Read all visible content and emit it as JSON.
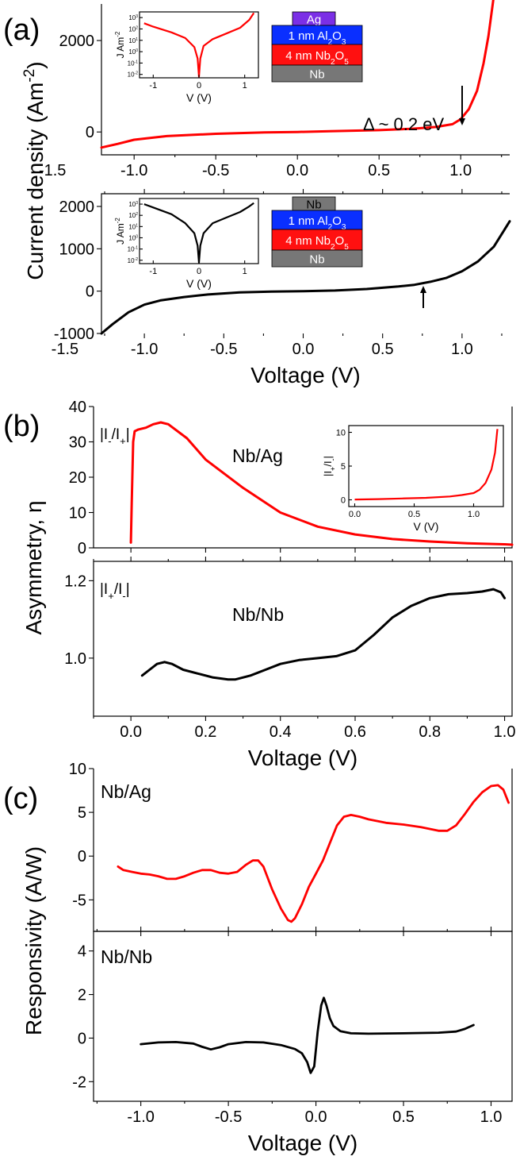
{
  "figure": {
    "labels": {
      "a": "(a)",
      "b": "(b)",
      "c": "(c)"
    },
    "ylabels": {
      "a": "Current density (Am^-2)",
      "b": "Asymmetry, η",
      "c": "Responsivity (A/W)"
    }
  },
  "chart_data": [
    {
      "id": "a_top",
      "type": "line",
      "xlabel": "",
      "ylabel": "",
      "xlim": [
        -1.2,
        1.3
      ],
      "ylim": [
        -500,
        2800
      ],
      "xticks": [
        -1.5,
        -1.0,
        -0.5,
        0.0,
        0.5,
        1.0
      ],
      "xtick_labels": [
        "-1.5",
        "-1.0",
        "-0.5",
        "0.0",
        "0.5",
        "1.0"
      ],
      "yticks": [
        0,
        2000
      ],
      "ytick_labels": [
        "0",
        "2000"
      ],
      "series": [
        {
          "color": "#ff0000",
          "x": [
            -1.2,
            -1.1,
            -1.0,
            -0.8,
            -0.5,
            -0.2,
            0.0,
            0.2,
            0.5,
            0.7,
            0.85,
            0.95,
            1.0,
            1.05,
            1.1,
            1.14,
            1.17,
            1.2
          ],
          "y": [
            -340,
            -260,
            -170,
            -90,
            -40,
            -10,
            0,
            15,
            40,
            70,
            110,
            170,
            280,
            500,
            900,
            1500,
            2100,
            2900
          ]
        }
      ],
      "annotations": [
        {
          "text": "Δ ~ 0.2 eV"
        }
      ],
      "stack": [
        "Ag",
        "1 nm Al2O3",
        "4 nm Nb2O5",
        "Nb"
      ],
      "inset": {
        "xlabel": "V (V)",
        "ylabel": "J Am^-2",
        "xlim": [
          -1.3,
          1.3
        ],
        "ylim_log10": [
          -2.3,
          3.5
        ],
        "xtick_labels": [
          "-1",
          "0",
          "1"
        ],
        "ytick_labels": [
          "10^3",
          "10^2",
          "10^1",
          "10^0",
          "10^-1",
          "10^-2"
        ],
        "x": [
          -1.2,
          -1.0,
          -0.6,
          -0.3,
          -0.1,
          -0.03,
          0.0,
          0.03,
          0.1,
          0.3,
          0.6,
          0.9,
          1.1,
          1.2
        ],
        "log10_y": [
          2.5,
          2.2,
          1.7,
          1.2,
          0.4,
          -0.6,
          -2.2,
          -0.6,
          0.5,
          1.1,
          1.6,
          2.1,
          2.8,
          3.4
        ]
      }
    },
    {
      "id": "a_bottom",
      "type": "line",
      "xlabel": "Voltage (V)",
      "ylabel": "",
      "xlim": [
        -1.27,
        1.3
      ],
      "ylim": [
        -1000,
        2300
      ],
      "xticks": [
        -1.5,
        -1.0,
        -0.5,
        0.0,
        0.5,
        1.0
      ],
      "xtick_labels": [
        "-1.5",
        "-1.0",
        "-0.5",
        "0.0",
        "0.5",
        "1.0"
      ],
      "yticks": [
        -1000,
        0,
        1000,
        2000
      ],
      "ytick_labels": [
        "-1000",
        "0",
        "1000",
        "2000"
      ],
      "series": [
        {
          "color": "#000000",
          "x": [
            -1.27,
            -1.2,
            -1.1,
            -1.0,
            -0.9,
            -0.75,
            -0.6,
            -0.4,
            -0.2,
            0.0,
            0.2,
            0.4,
            0.6,
            0.7,
            0.8,
            0.9,
            1.0,
            1.1,
            1.2,
            1.3
          ],
          "y": [
            -1000,
            -780,
            -500,
            -320,
            -220,
            -140,
            -80,
            -30,
            -10,
            0,
            15,
            50,
            110,
            150,
            220,
            310,
            470,
            700,
            1050,
            1650
          ]
        }
      ],
      "stack": [
        "Nb",
        "1 nm Al2O3",
        "4 nm Nb2O5",
        "Nb"
      ],
      "inset": {
        "xlabel": "V (V)",
        "ylabel": "J Am^-2",
        "xlim": [
          -1.3,
          1.3
        ],
        "ylim_log10": [
          -2.3,
          3.5
        ],
        "xtick_labels": [
          "-1",
          "0",
          "1"
        ],
        "ytick_labels": [
          "10^3",
          "10^2",
          "10^1",
          "10^0",
          "10^-1",
          "10^-2"
        ],
        "x": [
          -1.2,
          -1.0,
          -0.6,
          -0.3,
          -0.1,
          -0.03,
          0.0,
          0.03,
          0.1,
          0.3,
          0.6,
          0.9,
          1.1,
          1.2
        ],
        "log10_y": [
          3.0,
          2.7,
          2.1,
          1.3,
          0.4,
          -0.7,
          -2.2,
          -0.7,
          0.4,
          1.3,
          1.8,
          2.3,
          2.8,
          3.1
        ]
      }
    },
    {
      "id": "b_top",
      "type": "line",
      "xlabel": "",
      "ylabel": "",
      "xlim": [
        -0.1,
        1.02
      ],
      "ylim": [
        0,
        40
      ],
      "yticks": [
        0,
        10,
        20,
        30,
        40
      ],
      "ytick_labels": [
        "0",
        "10",
        "20",
        "30",
        "40"
      ],
      "series": [
        {
          "name": "Nb/Ag",
          "color": "#ff0000",
          "x": [
            0.0,
            0.002,
            0.006,
            0.01,
            0.02,
            0.04,
            0.06,
            0.08,
            0.1,
            0.15,
            0.2,
            0.3,
            0.4,
            0.5,
            0.6,
            0.7,
            0.8,
            0.9,
            1.0,
            1.02
          ],
          "y": [
            1.5,
            12,
            30,
            33,
            33.5,
            34,
            35,
            35.5,
            35,
            31,
            25,
            17,
            10,
            6,
            3.8,
            2.5,
            1.8,
            1.3,
            1.0,
            0.9
          ]
        }
      ],
      "annotations": [
        {
          "text": "|I-/I+|"
        },
        {
          "text": "Nb/Ag"
        }
      ],
      "inset": {
        "xlabel": "V (V)",
        "ylabel": "|I+/I-|",
        "xlim": [
          -0.05,
          1.25
        ],
        "ylim": [
          -1,
          11
        ],
        "xtick_labels": [
          "0.0",
          "0.5",
          "1.0"
        ],
        "ytick_labels": [
          "0",
          "5",
          "10"
        ],
        "x": [
          0.0,
          0.2,
          0.4,
          0.6,
          0.8,
          0.9,
          1.0,
          1.05,
          1.1,
          1.15,
          1.18,
          1.2
        ],
        "y": [
          0.05,
          0.1,
          0.2,
          0.3,
          0.5,
          0.7,
          1.0,
          1.5,
          2.5,
          4.5,
          7,
          10.5
        ]
      }
    },
    {
      "id": "b_bottom",
      "type": "line",
      "xlabel": "Voltage (V)",
      "ylabel": "",
      "xlim": [
        -0.1,
        1.02
      ],
      "ylim": [
        0.85,
        1.25
      ],
      "xticks": [
        0.0,
        0.2,
        0.4,
        0.6,
        0.8,
        1.0
      ],
      "xtick_labels": [
        "0.0",
        "0.2",
        "0.4",
        "0.6",
        "0.8",
        "1.0"
      ],
      "yticks": [
        1.0,
        1.2
      ],
      "ytick_labels": [
        "1.0",
        "1.2"
      ],
      "series": [
        {
          "name": "Nb/Nb",
          "color": "#000000",
          "x": [
            0.03,
            0.05,
            0.07,
            0.09,
            0.11,
            0.14,
            0.18,
            0.22,
            0.26,
            0.28,
            0.32,
            0.36,
            0.4,
            0.45,
            0.5,
            0.55,
            0.6,
            0.65,
            0.7,
            0.75,
            0.8,
            0.85,
            0.9,
            0.94,
            0.97,
            0.99,
            1.0
          ],
          "y": [
            0.955,
            0.97,
            0.985,
            0.99,
            0.985,
            0.97,
            0.96,
            0.95,
            0.945,
            0.945,
            0.955,
            0.97,
            0.985,
            0.995,
            1.0,
            1.005,
            1.02,
            1.06,
            1.105,
            1.135,
            1.155,
            1.165,
            1.168,
            1.172,
            1.178,
            1.17,
            1.155
          ]
        }
      ],
      "annotations": [
        {
          "text": "|I+/I-|"
        },
        {
          "text": "Nb/Nb"
        }
      ]
    },
    {
      "id": "c_top",
      "type": "line",
      "xlabel": "",
      "ylabel": "",
      "xlim": [
        -1.27,
        1.12
      ],
      "ylim": [
        -8.6,
        10
      ],
      "yticks": [
        -5,
        0,
        5,
        10
      ],
      "ytick_labels": [
        "-5",
        "0",
        "5",
        "10"
      ],
      "series": [
        {
          "name": "Nb/Ag",
          "color": "#ff0000",
          "x": [
            -1.13,
            -1.1,
            -1.05,
            -1.0,
            -0.95,
            -0.9,
            -0.85,
            -0.8,
            -0.75,
            -0.7,
            -0.65,
            -0.6,
            -0.55,
            -0.5,
            -0.45,
            -0.4,
            -0.36,
            -0.33,
            -0.3,
            -0.25,
            -0.2,
            -0.16,
            -0.14,
            -0.12,
            -0.08,
            -0.04,
            0.0,
            0.04,
            0.08,
            0.12,
            0.16,
            0.2,
            0.25,
            0.3,
            0.4,
            0.5,
            0.6,
            0.7,
            0.75,
            0.8,
            0.85,
            0.9,
            0.95,
            1.0,
            1.04,
            1.07,
            1.09,
            1.1
          ],
          "y": [
            -1.2,
            -1.6,
            -1.8,
            -2.0,
            -2.1,
            -2.3,
            -2.6,
            -2.6,
            -2.3,
            -1.9,
            -1.6,
            -1.6,
            -1.9,
            -2.0,
            -1.8,
            -1.0,
            -0.5,
            -0.5,
            -1.2,
            -3.8,
            -6.0,
            -7.3,
            -7.5,
            -7.1,
            -5.5,
            -3.5,
            -2.0,
            -0.5,
            1.5,
            3.5,
            4.5,
            4.7,
            4.5,
            4.2,
            3.8,
            3.6,
            3.3,
            2.9,
            2.9,
            3.5,
            4.8,
            6.2,
            7.3,
            8.0,
            8.1,
            7.6,
            6.6,
            6.1
          ]
        }
      ],
      "annotations": [
        {
          "text": "Nb/Ag"
        }
      ]
    },
    {
      "id": "c_bottom",
      "type": "line",
      "xlabel": "Voltage (V)",
      "ylabel": "",
      "xlim": [
        -1.27,
        1.12
      ],
      "ylim": [
        -2.9,
        4.9
      ],
      "xticks": [
        -1.0,
        -0.5,
        0.0,
        0.5,
        1.0
      ],
      "xtick_labels": [
        "-1.0",
        "-0.5",
        "0.0",
        "0.5",
        "1.0"
      ],
      "yticks": [
        -2,
        0,
        2,
        4
      ],
      "ytick_labels": [
        "-2",
        "0",
        "2",
        "4"
      ],
      "series": [
        {
          "name": "Nb/Nb",
          "color": "#000000",
          "x": [
            -1.0,
            -0.9,
            -0.8,
            -0.7,
            -0.65,
            -0.6,
            -0.55,
            -0.5,
            -0.4,
            -0.3,
            -0.2,
            -0.12,
            -0.08,
            -0.05,
            -0.03,
            -0.01,
            0.01,
            0.03,
            0.045,
            0.06,
            0.08,
            0.1,
            0.14,
            0.2,
            0.3,
            0.5,
            0.7,
            0.8,
            0.85,
            0.9
          ],
          "y": [
            -0.28,
            -0.2,
            -0.18,
            -0.25,
            -0.4,
            -0.52,
            -0.42,
            -0.28,
            -0.18,
            -0.2,
            -0.32,
            -0.5,
            -0.7,
            -1.1,
            -1.6,
            -1.3,
            0.3,
            1.5,
            1.85,
            1.5,
            0.9,
            0.55,
            0.32,
            0.22,
            0.2,
            0.22,
            0.25,
            0.3,
            0.42,
            0.6
          ]
        }
      ],
      "annotations": [
        {
          "text": "Nb/Nb"
        }
      ]
    }
  ]
}
